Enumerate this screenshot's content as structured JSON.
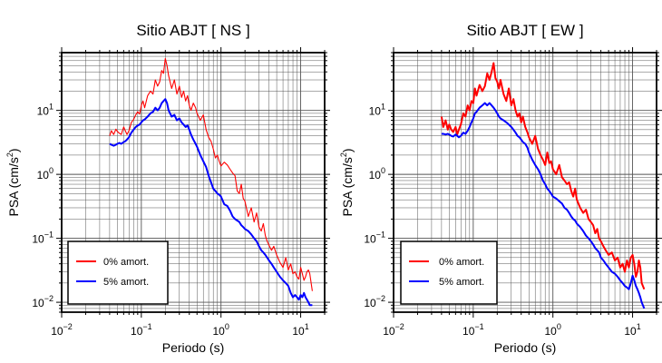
{
  "chart_data": [
    {
      "type": "line",
      "title": "Sitio ABJT [ NS ]",
      "xlabel": "Periodo (s)",
      "ylabel_main": "PSA (cm/s",
      "ylabel_sup": "2",
      "ylabel_close": ")",
      "x_scale": "log",
      "y_scale": "log",
      "xlim": [
        0.01,
        20
      ],
      "ylim": [
        0.007,
        80
      ],
      "grid": true,
      "legend_position": "bottom-left",
      "x_ticks": [
        {
          "value": 0.01,
          "base": "10",
          "exp": "−2"
        },
        {
          "value": 0.1,
          "base": "10",
          "exp": "−1"
        },
        {
          "value": 1,
          "base": "10",
          "exp": "0"
        },
        {
          "value": 10,
          "base": "10",
          "exp": "1"
        }
      ],
      "y_ticks": [
        {
          "value": 0.01,
          "base": "10",
          "exp": "−2"
        },
        {
          "value": 0.1,
          "base": "10",
          "exp": "−1"
        },
        {
          "value": 1,
          "base": "10",
          "exp": "0"
        },
        {
          "value": 10,
          "base": "10",
          "exp": "1"
        }
      ],
      "series": [
        {
          "name": "0% amort.",
          "color": "#ff0000",
          "width": 1.1,
          "x": [
            0.04,
            0.042,
            0.045,
            0.048,
            0.05,
            0.053,
            0.056,
            0.06,
            0.063,
            0.066,
            0.07,
            0.075,
            0.08,
            0.085,
            0.09,
            0.095,
            0.1,
            0.105,
            0.11,
            0.12,
            0.13,
            0.14,
            0.15,
            0.16,
            0.17,
            0.18,
            0.19,
            0.2,
            0.21,
            0.22,
            0.24,
            0.26,
            0.28,
            0.3,
            0.32,
            0.34,
            0.36,
            0.38,
            0.4,
            0.42,
            0.45,
            0.48,
            0.5,
            0.55,
            0.6,
            0.65,
            0.7,
            0.75,
            0.8,
            0.85,
            0.9,
            0.95,
            1.0,
            1.1,
            1.2,
            1.3,
            1.4,
            1.5,
            1.6,
            1.7,
            1.8,
            1.9,
            2.0,
            2.2,
            2.4,
            2.6,
            2.8,
            3.0,
            3.2,
            3.4,
            3.6,
            3.8,
            4.0,
            4.3,
            4.6,
            5.0,
            5.5,
            6.0,
            6.5,
            7.0,
            7.5,
            8.0,
            8.5,
            9.0,
            9.5,
            10,
            10.5,
            11,
            11.5,
            12,
            12.5,
            13,
            14
          ],
          "y": [
            4.0,
            4.8,
            4.2,
            5.1,
            4.7,
            4.4,
            4.2,
            5.5,
            4.8,
            4.2,
            4.8,
            6.5,
            7.2,
            8.5,
            9.5,
            8.8,
            12,
            14,
            11,
            17,
            20,
            18,
            30,
            24,
            28,
            42,
            38,
            65,
            50,
            35,
            22,
            30,
            18,
            24,
            16,
            20,
            14,
            17,
            12,
            10,
            13,
            11,
            9,
            7,
            8.5,
            5,
            3.8,
            3.3,
            2.5,
            1.8,
            2.0,
            1.6,
            1.35,
            1.55,
            1.4,
            1.2,
            1.05,
            0.95,
            0.55,
            0.5,
            0.7,
            0.42,
            0.38,
            0.22,
            0.3,
            0.18,
            0.25,
            0.15,
            0.13,
            0.17,
            0.11,
            0.09,
            0.078,
            0.065,
            0.075,
            0.055,
            0.042,
            0.035,
            0.05,
            0.032,
            0.04,
            0.028,
            0.03,
            0.025,
            0.023,
            0.035,
            0.028,
            0.022,
            0.025,
            0.03,
            0.032,
            0.028,
            0.015
          ]
        },
        {
          "name": "5% amort.",
          "color": "#0000ff",
          "width": 2.0,
          "x": [
            0.04,
            0.042,
            0.045,
            0.048,
            0.05,
            0.053,
            0.056,
            0.06,
            0.063,
            0.066,
            0.07,
            0.075,
            0.08,
            0.085,
            0.09,
            0.095,
            0.1,
            0.105,
            0.11,
            0.12,
            0.13,
            0.14,
            0.15,
            0.16,
            0.17,
            0.18,
            0.19,
            0.2,
            0.21,
            0.22,
            0.24,
            0.26,
            0.28,
            0.3,
            0.32,
            0.34,
            0.36,
            0.38,
            0.4,
            0.42,
            0.45,
            0.48,
            0.5,
            0.55,
            0.6,
            0.65,
            0.7,
            0.75,
            0.8,
            0.85,
            0.9,
            0.95,
            1.0,
            1.1,
            1.2,
            1.3,
            1.4,
            1.5,
            1.6,
            1.7,
            1.8,
            1.9,
            2.0,
            2.2,
            2.4,
            2.6,
            2.8,
            3.0,
            3.2,
            3.4,
            3.6,
            3.8,
            4.0,
            4.3,
            4.6,
            5.0,
            5.5,
            6.0,
            6.5,
            7.0,
            7.5,
            8.0,
            8.5,
            9.0,
            9.5,
            10,
            10.5,
            11,
            11.5,
            12,
            12.5,
            13,
            14
          ],
          "y": [
            3.0,
            2.9,
            2.8,
            2.9,
            3.0,
            3.1,
            3.0,
            3.2,
            3.3,
            3.5,
            3.8,
            4.5,
            5.0,
            5.5,
            5.8,
            6.0,
            6.5,
            7.0,
            7.2,
            8.0,
            9.0,
            9.5,
            11,
            10,
            11,
            13,
            14,
            15,
            13,
            10,
            8.0,
            8.5,
            7.0,
            7.5,
            6.5,
            6.0,
            5.5,
            5.8,
            5.0,
            4.2,
            3.5,
            3.0,
            2.7,
            2.0,
            1.6,
            1.3,
            0.95,
            0.75,
            0.6,
            0.55,
            0.5,
            0.48,
            0.45,
            0.34,
            0.32,
            0.27,
            0.22,
            0.2,
            0.19,
            0.18,
            0.16,
            0.15,
            0.14,
            0.13,
            0.115,
            0.1,
            0.09,
            0.075,
            0.065,
            0.06,
            0.055,
            0.05,
            0.045,
            0.04,
            0.035,
            0.03,
            0.025,
            0.022,
            0.02,
            0.018,
            0.014,
            0.012,
            0.013,
            0.012,
            0.011,
            0.013,
            0.012,
            0.014,
            0.012,
            0.011,
            0.01,
            0.009,
            0.009
          ]
        }
      ]
    },
    {
      "type": "line",
      "title": "Sitio ABJT [ EW ]",
      "xlabel": "Periodo (s)",
      "ylabel_main": "PSA (cm/s",
      "ylabel_sup": "2",
      "ylabel_close": ")",
      "x_scale": "log",
      "y_scale": "log",
      "xlim": [
        0.01,
        20
      ],
      "ylim": [
        0.007,
        80
      ],
      "grid": true,
      "legend_position": "bottom-left",
      "x_ticks": [
        {
          "value": 0.01,
          "base": "10",
          "exp": "−2"
        },
        {
          "value": 0.1,
          "base": "10",
          "exp": "−1"
        },
        {
          "value": 1,
          "base": "10",
          "exp": "0"
        },
        {
          "value": 10,
          "base": "10",
          "exp": "1"
        }
      ],
      "y_ticks": [
        {
          "value": 0.01,
          "base": "10",
          "exp": "−2"
        },
        {
          "value": 0.1,
          "base": "10",
          "exp": "−1"
        },
        {
          "value": 1,
          "base": "10",
          "exp": "0"
        },
        {
          "value": 10,
          "base": "10",
          "exp": "1"
        }
      ],
      "series": [
        {
          "name": "0% amort.",
          "color": "#ff0000",
          "width": 2.0,
          "x": [
            0.04,
            0.042,
            0.045,
            0.048,
            0.05,
            0.053,
            0.056,
            0.06,
            0.063,
            0.066,
            0.07,
            0.075,
            0.08,
            0.085,
            0.09,
            0.095,
            0.1,
            0.105,
            0.11,
            0.12,
            0.13,
            0.14,
            0.15,
            0.16,
            0.17,
            0.18,
            0.19,
            0.2,
            0.21,
            0.22,
            0.24,
            0.26,
            0.28,
            0.3,
            0.32,
            0.34,
            0.36,
            0.38,
            0.4,
            0.42,
            0.45,
            0.48,
            0.5,
            0.55,
            0.6,
            0.65,
            0.7,
            0.75,
            0.8,
            0.85,
            0.9,
            0.95,
            1.0,
            1.1,
            1.2,
            1.3,
            1.4,
            1.5,
            1.6,
            1.7,
            1.8,
            1.9,
            2.0,
            2.2,
            2.4,
            2.6,
            2.8,
            3.0,
            3.2,
            3.4,
            3.6,
            3.8,
            4.0,
            4.3,
            4.6,
            5.0,
            5.5,
            6.0,
            6.5,
            7.0,
            7.5,
            8.0,
            8.5,
            9.0,
            9.5,
            10,
            10.5,
            11,
            11.5,
            12,
            12.5,
            13,
            14
          ],
          "y": [
            8.0,
            5.5,
            7.0,
            5.0,
            6.0,
            5.0,
            4.6,
            5.5,
            4.2,
            5.0,
            6.0,
            9.0,
            8.0,
            12,
            10,
            14,
            13,
            22,
            17,
            25,
            20,
            24,
            38,
            30,
            40,
            55,
            32,
            28,
            22,
            30,
            18,
            14,
            22,
            12,
            15,
            10,
            8.0,
            9.0,
            6.5,
            8.0,
            5.5,
            4.5,
            3.8,
            3.0,
            4.0,
            2.5,
            2.0,
            1.7,
            1.4,
            2.2,
            1.5,
            1.6,
            1.2,
            1.0,
            1.4,
            0.9,
            0.8,
            0.7,
            0.75,
            0.55,
            0.45,
            0.6,
            0.4,
            0.3,
            0.25,
            0.28,
            0.2,
            0.18,
            0.16,
            0.12,
            0.14,
            0.1,
            0.09,
            0.075,
            0.065,
            0.055,
            0.06,
            0.045,
            0.05,
            0.035,
            0.04,
            0.03,
            0.045,
            0.035,
            0.05,
            0.055,
            0.04,
            0.025,
            0.03,
            0.045,
            0.035,
            0.02,
            0.016
          ]
        },
        {
          "name": "5% amort.",
          "color": "#0000ff",
          "width": 2.0,
          "x": [
            0.04,
            0.042,
            0.045,
            0.048,
            0.05,
            0.053,
            0.056,
            0.06,
            0.063,
            0.066,
            0.07,
            0.075,
            0.08,
            0.085,
            0.09,
            0.095,
            0.1,
            0.105,
            0.11,
            0.12,
            0.13,
            0.14,
            0.15,
            0.16,
            0.17,
            0.18,
            0.19,
            0.2,
            0.21,
            0.22,
            0.24,
            0.26,
            0.28,
            0.3,
            0.32,
            0.34,
            0.36,
            0.38,
            0.4,
            0.42,
            0.45,
            0.48,
            0.5,
            0.55,
            0.6,
            0.65,
            0.7,
            0.75,
            0.8,
            0.85,
            0.9,
            0.95,
            1.0,
            1.1,
            1.2,
            1.3,
            1.4,
            1.5,
            1.6,
            1.7,
            1.8,
            1.9,
            2.0,
            2.2,
            2.4,
            2.6,
            2.8,
            3.0,
            3.2,
            3.4,
            3.6,
            3.8,
            4.0,
            4.3,
            4.6,
            5.0,
            5.5,
            6.0,
            6.5,
            7.0,
            7.5,
            8.0,
            8.5,
            9.0,
            9.5,
            10,
            10.5,
            11,
            11.5,
            12,
            12.5,
            13,
            14
          ],
          "y": [
            4.3,
            4.3,
            4.2,
            4.3,
            4.2,
            4.0,
            3.9,
            4.2,
            4.0,
            3.8,
            4.0,
            4.5,
            4.3,
            4.8,
            5.5,
            6.5,
            7.5,
            9.0,
            9.5,
            11,
            12,
            13,
            12,
            13,
            12,
            11,
            10,
            9.0,
            8.0,
            7.5,
            7.0,
            6.5,
            6.0,
            5.5,
            5.0,
            4.5,
            4.0,
            3.8,
            3.5,
            3.2,
            3.0,
            2.6,
            2.2,
            1.7,
            1.4,
            1.2,
            1.0,
            0.8,
            0.7,
            0.6,
            0.55,
            0.5,
            0.45,
            0.42,
            0.38,
            0.35,
            0.3,
            0.28,
            0.25,
            0.22,
            0.2,
            0.19,
            0.17,
            0.15,
            0.13,
            0.11,
            0.1,
            0.09,
            0.08,
            0.07,
            0.065,
            0.06,
            0.05,
            0.045,
            0.04,
            0.035,
            0.03,
            0.028,
            0.025,
            0.022,
            0.02,
            0.018,
            0.017,
            0.016,
            0.02,
            0.026,
            0.022,
            0.018,
            0.016,
            0.014,
            0.012,
            0.01,
            0.008
          ]
        }
      ]
    }
  ]
}
